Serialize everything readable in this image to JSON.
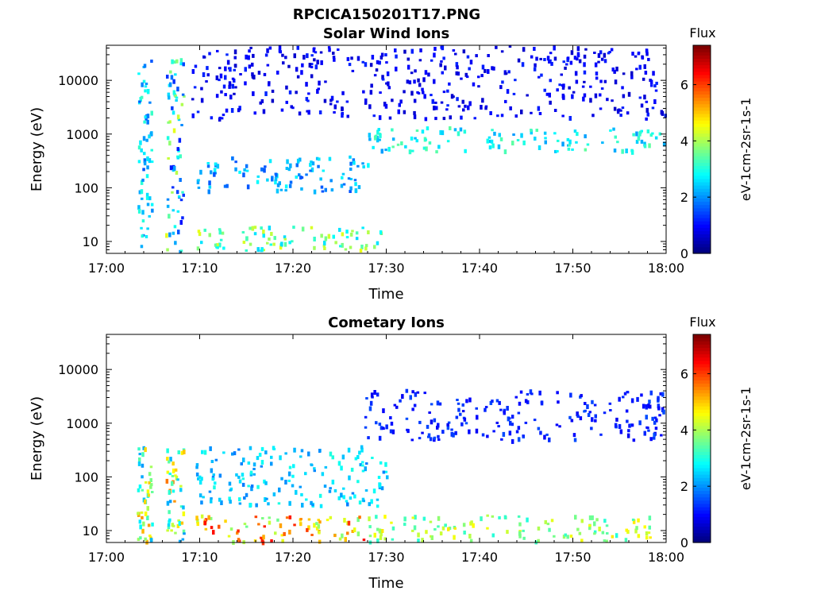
{
  "figure_title": "RPCICA150201T17.PNG",
  "chart_data": [
    {
      "type": "heatmap",
      "title": "Solar Wind Ions",
      "xlabel": "Time",
      "ylabel": "Energy (eV)",
      "x_ticks": [
        "17:00",
        "17:10",
        "17:20",
        "17:30",
        "17:40",
        "17:50",
        "18:00"
      ],
      "xlim": [
        "17:00",
        "18:00"
      ],
      "y_scale": "log",
      "y_ticks": [
        10,
        100,
        1000,
        10000
      ],
      "y_tick_labels": [
        "10",
        "100",
        "1000",
        "10000"
      ],
      "ylim": [
        6,
        45000
      ],
      "colorbar": {
        "label": "Flux",
        "units": "eV-1cm-2sr-1s-1",
        "range": [
          0,
          7.4
        ],
        "ticks": [
          0,
          2,
          4,
          6
        ],
        "colormap": "jet"
      },
      "features": [
        {
          "time_min": [
            3.2,
            4.8
          ],
          "energy_eV": [
            6,
            30000
          ],
          "flux": [
            1.5,
            3.2
          ]
        },
        {
          "time_min": [
            6.3,
            8.2
          ],
          "energy_eV": [
            6,
            30000
          ],
          "flux": [
            1.0,
            4.5
          ]
        },
        {
          "time_min": [
            9.5,
            28.0
          ],
          "energy_eV": [
            90,
            400
          ],
          "flux": [
            1.5,
            2.8
          ]
        },
        {
          "time_min": [
            28.0,
            60.0
          ],
          "energy_eV": [
            500,
            1400
          ],
          "flux": [
            2.0,
            3.5
          ]
        },
        {
          "time_min": [
            9.5,
            30.0
          ],
          "energy_eV": [
            7,
            20
          ],
          "flux": [
            2.5,
            4.5
          ]
        },
        {
          "time_min": [
            9.0,
            60.0
          ],
          "energy_eV": [
            2000,
            45000
          ],
          "flux": [
            0.5,
            1.2
          ]
        }
      ]
    },
    {
      "type": "heatmap",
      "title": "Cometary Ions",
      "xlabel": "Time",
      "ylabel": "Energy (eV)",
      "x_ticks": [
        "17:00",
        "17:10",
        "17:20",
        "17:30",
        "17:40",
        "17:50",
        "18:00"
      ],
      "xlim": [
        "17:00",
        "18:00"
      ],
      "y_scale": "log",
      "y_ticks": [
        10,
        100,
        1000,
        10000
      ],
      "y_tick_labels": [
        "10",
        "100",
        "1000",
        "10000"
      ],
      "ylim": [
        6,
        45000
      ],
      "colorbar": {
        "label": "Flux",
        "units": "eV-1cm-2sr-1s-1",
        "range": [
          0,
          7.4
        ],
        "ticks": [
          0,
          2,
          4,
          6
        ],
        "colormap": "jet"
      },
      "features": [
        {
          "time_min": [
            3.2,
            4.8
          ],
          "energy_eV": [
            6,
            400
          ],
          "flux": [
            2.0,
            5.5
          ]
        },
        {
          "time_min": [
            6.3,
            8.2
          ],
          "energy_eV": [
            6,
            450
          ],
          "flux": [
            2.0,
            5.8
          ]
        },
        {
          "time_min": [
            9.5,
            30.0
          ],
          "energy_eV": [
            30,
            400
          ],
          "flux": [
            1.8,
            3.0
          ]
        },
        {
          "time_min": [
            9.5,
            27.5
          ],
          "energy_eV": [
            6,
            20
          ],
          "flux": [
            3.5,
            6.5
          ]
        },
        {
          "time_min": [
            28.0,
            60.0
          ],
          "energy_eV": [
            6,
            20
          ],
          "flux": [
            3.0,
            4.8
          ]
        },
        {
          "time_min": [
            27.5,
            60.0
          ],
          "energy_eV": [
            500,
            4500
          ],
          "flux": [
            0.8,
            1.5
          ]
        }
      ]
    }
  ]
}
